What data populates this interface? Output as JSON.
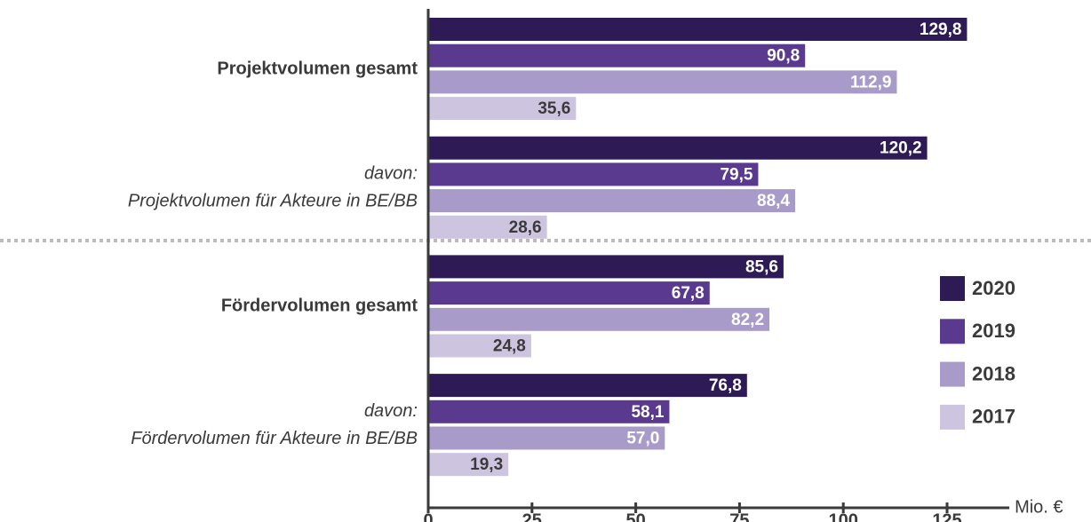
{
  "chart_data": {
    "type": "barh",
    "categories": [
      [
        "Projektvolumen gesamt"
      ],
      [
        "davon:",
        "Projektvolumen für Akteure in BE/BB"
      ],
      [
        "Fördervolumen gesamt"
      ],
      [
        "davon:",
        "Fördervolumen für Akteure in BE/BB"
      ]
    ],
    "category_styles": [
      "bold",
      "italic",
      "bold",
      "italic"
    ],
    "series": [
      {
        "name": "2020",
        "color": "#2e1b55",
        "label_color": "#ffffff",
        "values": [
          129.8,
          120.2,
          85.6,
          76.8
        ],
        "value_labels": [
          "129,8",
          "120,2",
          "85,6",
          "76,8"
        ]
      },
      {
        "name": "2019",
        "color": "#5a3a8e",
        "label_color": "#ffffff",
        "values": [
          90.8,
          79.5,
          67.8,
          58.1
        ],
        "value_labels": [
          "90,8",
          "79,5",
          "67,8",
          "58,1"
        ]
      },
      {
        "name": "2018",
        "color": "#a99bc9",
        "label_color": "#ffffff",
        "values": [
          112.9,
          88.4,
          82.2,
          57.0
        ],
        "value_labels": [
          "112,9",
          "88,4",
          "82,2",
          "57,0"
        ]
      },
      {
        "name": "2017",
        "color": "#cdc5df",
        "label_color": "#3a3a3a",
        "values": [
          35.6,
          28.6,
          24.8,
          19.3
        ],
        "value_labels": [
          "35,6",
          "28,6",
          "24,8",
          "19,3"
        ]
      }
    ],
    "xlabel": "Mio. €",
    "xlim": [
      0,
      140
    ],
    "xticks": [
      0,
      25,
      50,
      75,
      100,
      125
    ],
    "legend": "right"
  }
}
